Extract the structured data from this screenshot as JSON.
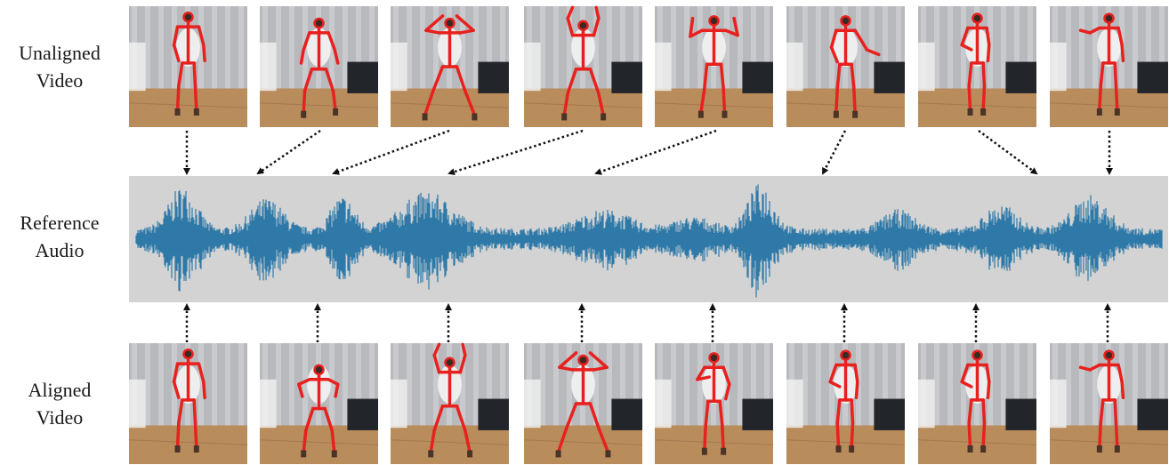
{
  "labels": {
    "unaligned": [
      "Unaligned",
      "Video"
    ],
    "reference": [
      "Reference",
      "Audio"
    ],
    "aligned": [
      "Aligned",
      "Video"
    ]
  },
  "colors": {
    "skeleton": "#e8201e",
    "waveform": "#2e79a8",
    "waveform_bg": "#d3d3d3",
    "arrow": "#111111",
    "floor": "#b98c5c",
    "curtain": "#b7b9bc"
  },
  "unaligned_poses": [
    "stand",
    "step",
    "arms-up-head",
    "arms-up-high",
    "arms-flex",
    "arm-side",
    "stand-arm-in",
    "arm-point"
  ],
  "aligned_poses": [
    "stand",
    "arms-bent",
    "arms-up-high",
    "arms-up-head",
    "arm-in",
    "stand-arm-in",
    "stand-arm-in",
    "arm-point"
  ]
}
